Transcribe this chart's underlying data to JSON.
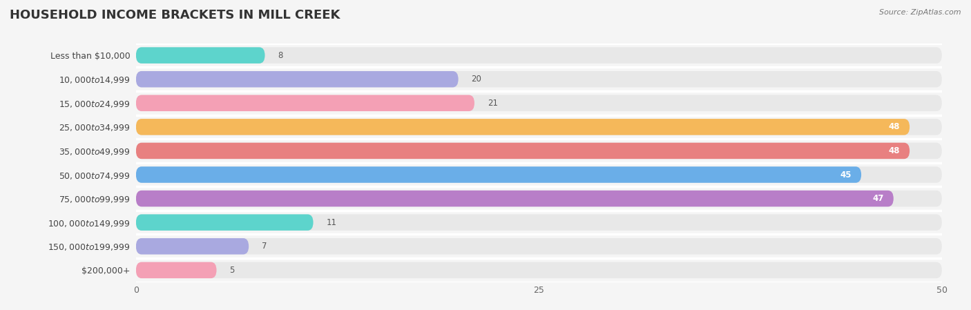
{
  "title": "HOUSEHOLD INCOME BRACKETS IN MILL CREEK",
  "source": "Source: ZipAtlas.com",
  "categories": [
    "Less than $10,000",
    "$10,000 to $14,999",
    "$15,000 to $24,999",
    "$25,000 to $34,999",
    "$35,000 to $49,999",
    "$50,000 to $74,999",
    "$75,000 to $99,999",
    "$100,000 to $149,999",
    "$150,000 to $199,999",
    "$200,000+"
  ],
  "values": [
    8,
    20,
    21,
    48,
    48,
    45,
    47,
    11,
    7,
    5
  ],
  "bar_colors": [
    "#5dd4cc",
    "#a9a9e0",
    "#f4a0b5",
    "#f5b85a",
    "#e88080",
    "#6aaee8",
    "#b87ec8",
    "#5dd4cc",
    "#a9a9e0",
    "#f4a0b5"
  ],
  "xlim": [
    0,
    50
  ],
  "xticks": [
    0,
    25,
    50
  ],
  "background_color": "#f5f5f5",
  "bar_background_color": "#e8e8e8",
  "title_fontsize": 13,
  "label_fontsize": 9,
  "value_fontsize": 8.5,
  "bar_height": 0.68,
  "fig_width": 14.06,
  "fig_height": 4.49,
  "value_threshold": 25
}
